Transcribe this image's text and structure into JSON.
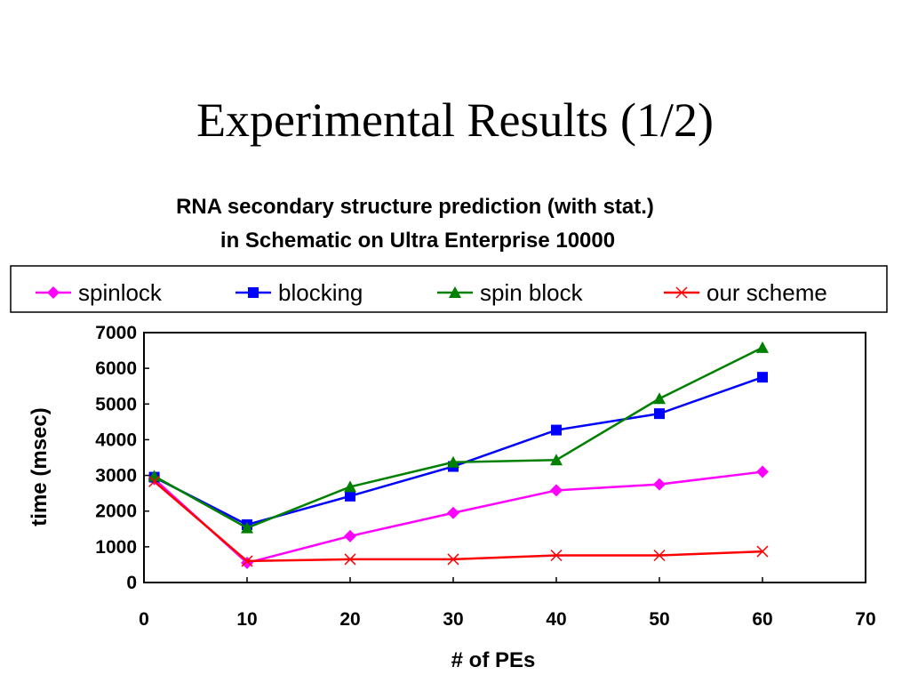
{
  "slide": {
    "title": "Experimental Results (1/2)"
  },
  "chart_data": {
    "type": "line",
    "title": "RNA secondary structure prediction (with stat.)",
    "subtitle": "in Schematic on Ultra Enterprise 10000",
    "xlabel": "# of PEs",
    "ylabel": "time (msec)",
    "xlim": [
      0,
      70
    ],
    "ylim": [
      0,
      7000
    ],
    "xticks": [
      0,
      10,
      20,
      30,
      40,
      50,
      60,
      70
    ],
    "yticks": [
      0,
      1000,
      2000,
      3000,
      4000,
      5000,
      6000,
      7000
    ],
    "grid": false,
    "legend_position": "top",
    "x": [
      1,
      10,
      20,
      30,
      40,
      50,
      60
    ],
    "series": [
      {
        "name": "spinlock",
        "color": "#ff00ff",
        "marker": "diamond",
        "values": [
          2900,
          550,
          1300,
          1950,
          2580,
          2750,
          3100
        ]
      },
      {
        "name": "blocking",
        "color": "#0000ff",
        "marker": "square",
        "values": [
          2950,
          1620,
          2420,
          3250,
          4270,
          4730,
          5750
        ]
      },
      {
        "name": "spin block",
        "color": "#008000",
        "marker": "triangle",
        "values": [
          2980,
          1530,
          2680,
          3370,
          3430,
          5150,
          6580
        ]
      },
      {
        "name": "our scheme",
        "color": "#ff0000",
        "marker": "x",
        "values": [
          2830,
          600,
          650,
          650,
          760,
          760,
          870
        ]
      }
    ]
  }
}
